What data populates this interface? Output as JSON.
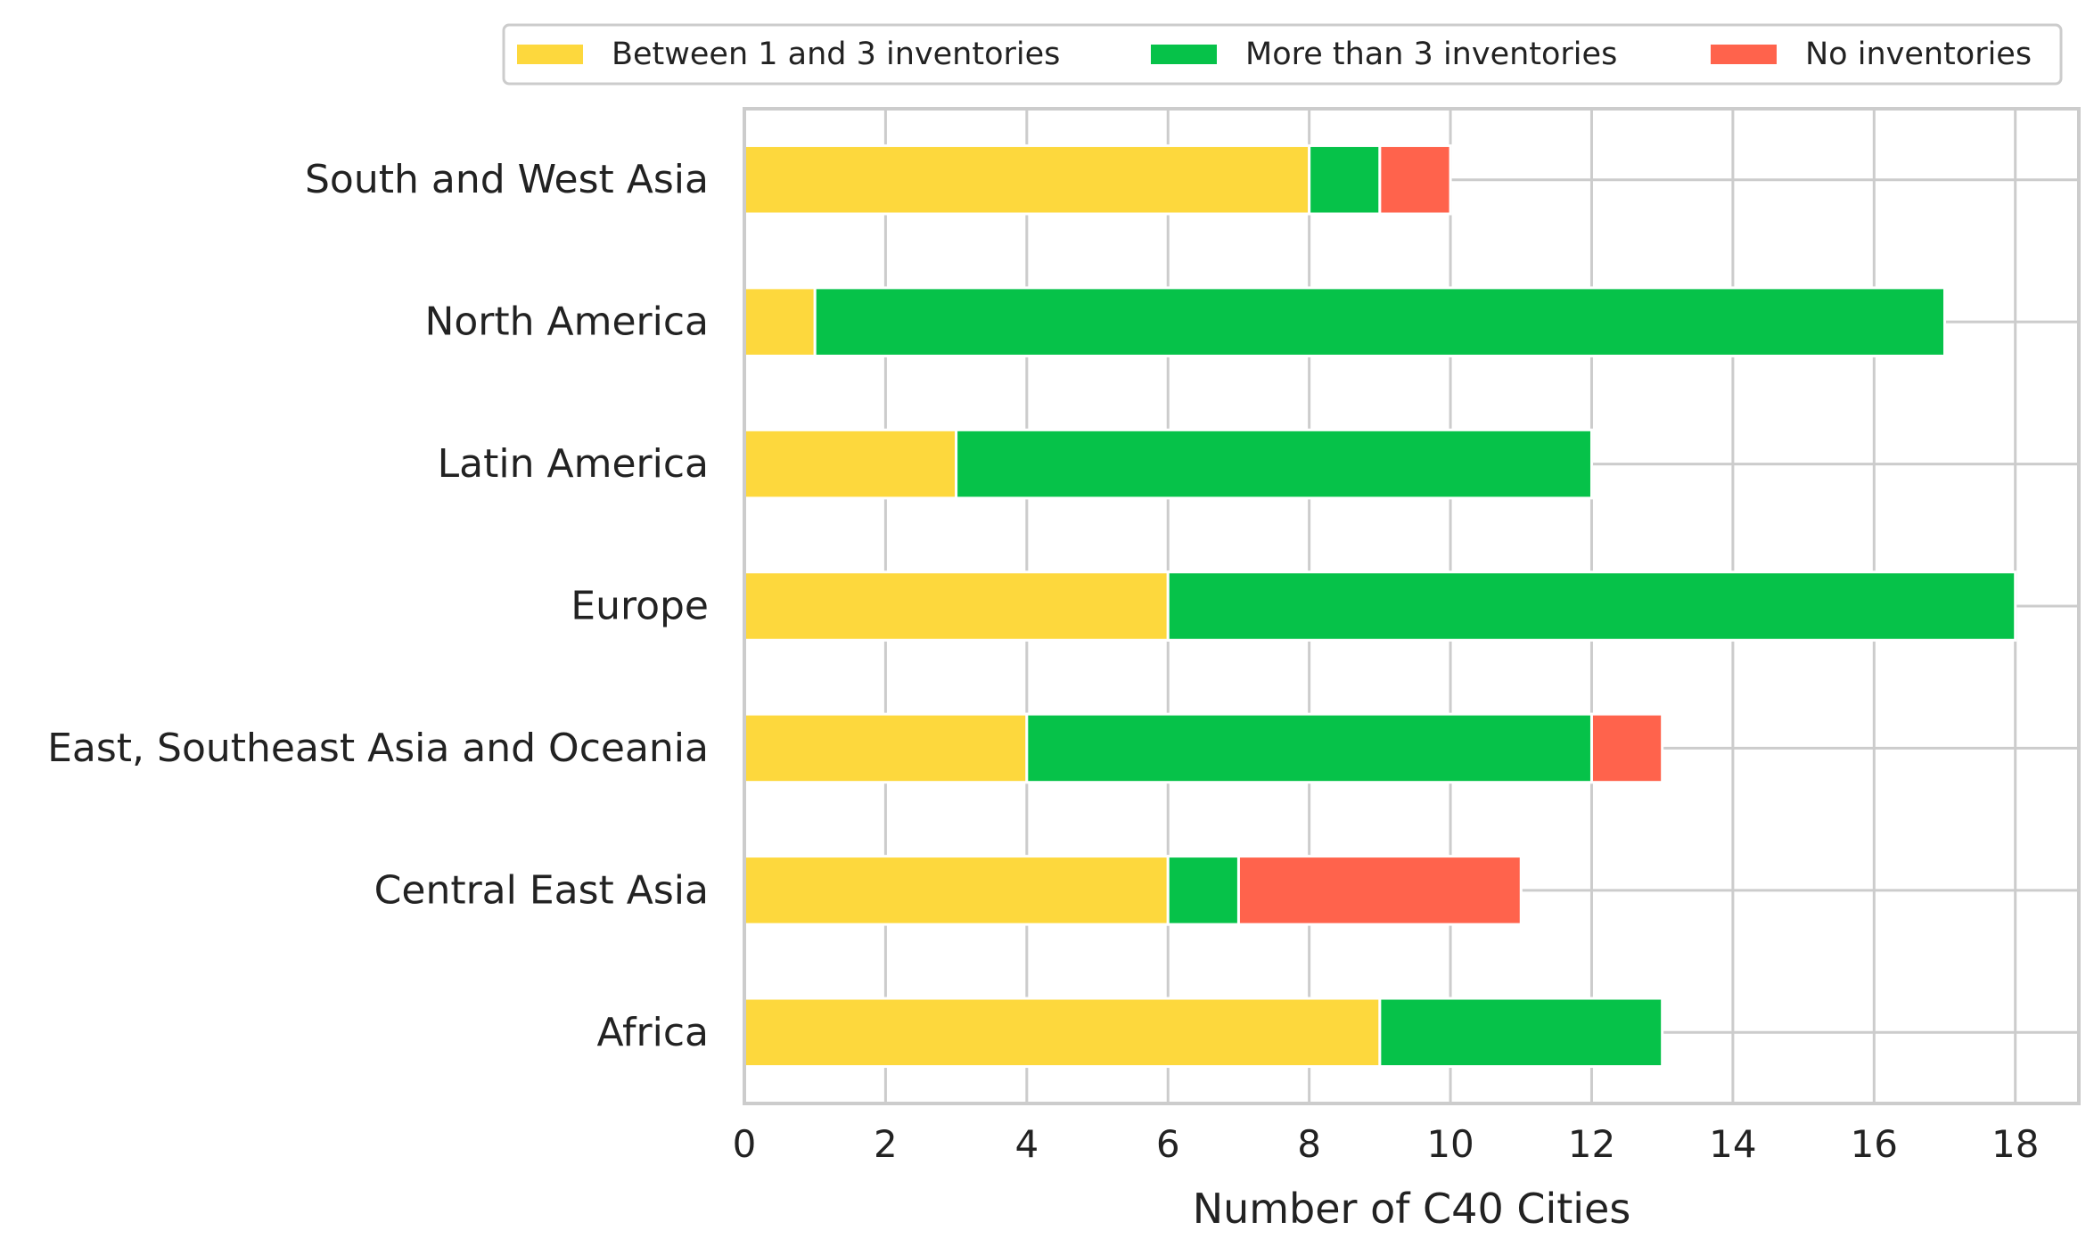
{
  "chart_data": {
    "type": "bar",
    "orientation": "horizontal",
    "stacked": true,
    "categories": [
      "South and West Asia",
      "North America",
      "Latin America",
      "Europe",
      "East, Southeast Asia and Oceania",
      "Central East Asia",
      "Africa"
    ],
    "series": [
      {
        "name": "Between 1 and 3 inventories",
        "color": "#FDD83D",
        "values": [
          8,
          1,
          3,
          6,
          4,
          6,
          9
        ]
      },
      {
        "name": "More than 3 inventories",
        "color": "#06C249",
        "values": [
          1,
          16,
          9,
          12,
          8,
          1,
          4
        ]
      },
      {
        "name": "No inventories",
        "color": "#FF634C",
        "values": [
          1,
          0,
          0,
          0,
          1,
          4,
          0
        ]
      }
    ],
    "title": "",
    "xlabel": "Number of C40 Cities",
    "ylabel": "",
    "xlim": [
      0,
      18.9
    ],
    "xticks": [
      0,
      2,
      4,
      6,
      8,
      10,
      12,
      14,
      16,
      18
    ],
    "grid": true,
    "legend_placement": "top-right"
  }
}
